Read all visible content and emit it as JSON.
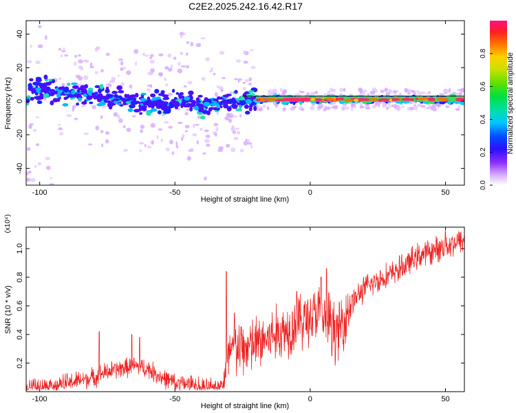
{
  "title": "C2E2.2025.242.16.42.R17",
  "colors": {
    "snr_line": "#ee2222",
    "trace_core": "#ff2a6a",
    "trace_mid": "#2ee060",
    "trace_edge": "#3a10ff"
  },
  "colorbar": {
    "label": "Normalized spectral amplitude",
    "ticks": [
      "0.0",
      "0.2",
      "0.4",
      "0.6",
      "0.8"
    ],
    "tick_values": [
      0.0,
      0.2,
      0.4,
      0.6,
      0.8
    ],
    "range": [
      0,
      1
    ]
  },
  "chart_data": [
    {
      "type": "heatmap",
      "title": "C2E2.2025.242.16.42.R17",
      "xlabel": "Height of straight line (km)",
      "ylabel": "Frequency (Hz)",
      "xlim": [
        -105,
        57
      ],
      "ylim": [
        -50,
        48
      ],
      "xticks": [
        -100,
        -50,
        0,
        50
      ],
      "xtick_labels": [
        "-100",
        "-50",
        "0",
        "50"
      ],
      "yticks": [
        -40,
        -20,
        0,
        20,
        40
      ],
      "ytick_labels": [
        "-40",
        "-20",
        "0",
        "20",
        "40"
      ],
      "trace": {
        "description_points": [
          [
            -104,
            8
          ],
          [
            -95,
            6
          ],
          [
            -80,
            3
          ],
          [
            -60,
            -1
          ],
          [
            -40,
            -2
          ],
          [
            -25,
            0
          ],
          [
            -18,
            1
          ],
          [
            0,
            1
          ],
          [
            57,
            1
          ]
        ],
        "strong_from_x": -20,
        "center_freq": 1
      }
    },
    {
      "type": "line",
      "xlabel": "Height of straight line (km)",
      "ylabel": "SNR (10 * v/v)",
      "multiplier": "(x10⁴)",
      "xlim": [
        -105,
        57
      ],
      "ylim": [
        0.0,
        1.15
      ],
      "xticks": [
        -100,
        -50,
        0,
        50
      ],
      "xtick_labels": [
        "-100",
        "-50",
        "0",
        "50"
      ],
      "yticks": [
        0.2,
        0.4,
        0.6,
        0.8,
        1.0
      ],
      "ytick_labels": [
        "0.2",
        "0.4",
        "0.6",
        "0.8",
        "1.0"
      ],
      "series": [
        {
          "name": "SNR",
          "x": [
            -105,
            -100,
            -95,
            -90,
            -85,
            -80,
            -75,
            -70,
            -65,
            -60,
            -55,
            -50,
            -45,
            -40,
            -35,
            -32,
            -30,
            -28,
            -25,
            -20,
            -15,
            -10,
            -5,
            0,
            3,
            5,
            8,
            10,
            15,
            20,
            25,
            30,
            35,
            40,
            45,
            50,
            57
          ],
          "y": [
            0.03,
            0.03,
            0.05,
            0.06,
            0.08,
            0.1,
            0.14,
            0.16,
            0.18,
            0.16,
            0.1,
            0.06,
            0.05,
            0.03,
            0.02,
            0.05,
            0.25,
            0.3,
            0.3,
            0.33,
            0.38,
            0.42,
            0.48,
            0.52,
            0.55,
            0.5,
            0.48,
            0.4,
            0.62,
            0.72,
            0.78,
            0.82,
            0.88,
            0.95,
            0.98,
            1.02,
            1.06
          ],
          "spikes": [
            [
              -78,
              0.42
            ],
            [
              -66,
              0.4
            ],
            [
              -63,
              0.38
            ],
            [
              -31,
              0.84
            ],
            [
              -28,
              0.55
            ],
            [
              -5,
              0.7
            ],
            [
              4,
              0.8
            ],
            [
              6,
              0.86
            ],
            [
              8,
              0.25
            ],
            [
              32,
              0.84
            ],
            [
              50,
              1.12
            ]
          ]
        }
      ]
    }
  ]
}
